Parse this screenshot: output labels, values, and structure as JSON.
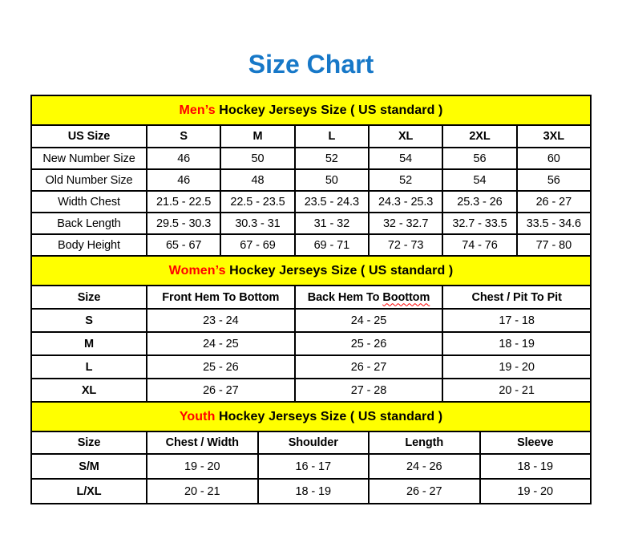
{
  "page": {
    "title": "Size Chart"
  },
  "colors": {
    "title_blue": "#1778c8",
    "banner_yellow": "#ffff00",
    "highlight_red": "#ff0000",
    "border_black": "#000000"
  },
  "tables": {
    "mens": {
      "banner": {
        "highlight": "Men’s",
        "rest": " Hockey Jerseys Size ( US standard )"
      },
      "bold_row_labels": false,
      "columns": [
        "US Size",
        "S",
        "M",
        "L",
        "XL",
        "2XL",
        "3XL"
      ],
      "rows": [
        {
          "label": "New Number Size",
          "values": [
            "46",
            "50",
            "52",
            "54",
            "56",
            "60"
          ]
        },
        {
          "label": "Old Number Size",
          "values": [
            "46",
            "48",
            "50",
            "52",
            "54",
            "56"
          ]
        },
        {
          "label": "Width Chest",
          "values": [
            "21.5 - 22.5",
            "22.5 - 23.5",
            "23.5 - 24.3",
            "24.3 - 25.3",
            "25.3 - 26",
            "26 - 27"
          ]
        },
        {
          "label": "Back Length",
          "values": [
            "29.5 - 30.3",
            "30.3 - 31",
            "31 - 32",
            "32 - 32.7",
            "32.7 - 33.5",
            "33.5 - 34.6"
          ]
        },
        {
          "label": "Body Height",
          "values": [
            "65 - 67",
            "67 - 69",
            "69 - 71",
            "72 - 73",
            "74 - 76",
            "77 - 80"
          ]
        }
      ]
    },
    "womens": {
      "banner": {
        "highlight": "Women’s",
        "rest": " Hockey Jerseys Size ( US standard )"
      },
      "bold_row_labels": true,
      "columns": [
        "Size",
        "Front Hem To Bottom",
        "Back Hem To Boottom",
        "Chest / Pit To Pit"
      ],
      "misspell": {
        "column_index": 2,
        "prefix": "Back Hem To ",
        "word": "Boottom"
      },
      "rows": [
        {
          "label": "S",
          "values": [
            "23 - 24",
            "24 - 25",
            "17 - 18"
          ]
        },
        {
          "label": "M",
          "values": [
            "24 - 25",
            "25 - 26",
            "18 - 19"
          ]
        },
        {
          "label": "L",
          "values": [
            "25 - 26",
            "26 - 27",
            "19 - 20"
          ]
        },
        {
          "label": "XL",
          "values": [
            "26 - 27",
            "27 - 28",
            "20 - 21"
          ]
        }
      ]
    },
    "youth": {
      "banner": {
        "highlight": "Youth",
        "rest": " Hockey Jerseys Size ( US standard )"
      },
      "bold_row_labels": true,
      "columns": [
        "Size",
        "Chest / Width",
        "Shoulder",
        "Length",
        "Sleeve"
      ],
      "rows": [
        {
          "label": "S/M",
          "values": [
            "19 - 20",
            "16 - 17",
            "24 - 26",
            "18 - 19"
          ]
        },
        {
          "label": "L/XL",
          "values": [
            "20 - 21",
            "18 - 19",
            "26 - 27",
            "19 - 20"
          ]
        }
      ]
    }
  }
}
